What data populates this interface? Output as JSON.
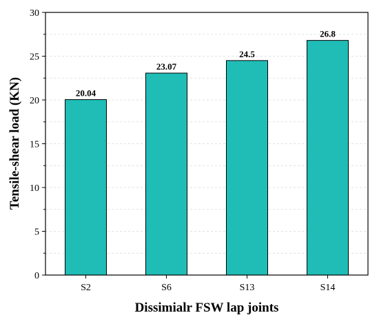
{
  "chart_data": {
    "type": "bar",
    "categories": [
      "S2",
      "S6",
      "S13",
      "S14"
    ],
    "values": [
      20.04,
      23.07,
      24.5,
      26.8
    ],
    "value_labels": [
      "20.04",
      "23.07",
      "24.5",
      "26.8"
    ],
    "xlabel": "Dissimialr FSW lap joints",
    "ylabel": "Tensile-shear load (KN)",
    "ylim": [
      0,
      30
    ],
    "yticks": [
      0,
      5,
      10,
      15,
      20,
      25,
      30
    ],
    "ytick_labels": [
      "0",
      "5",
      "10",
      "15",
      "20",
      "25",
      "30"
    ],
    "grid": "horizontal dashed",
    "bar_color": "#20bdb7",
    "bar_edge_color": "#000000"
  }
}
